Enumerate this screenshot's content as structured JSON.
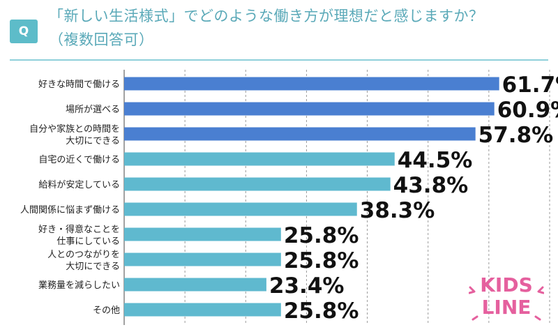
{
  "header": {
    "badge": "Q",
    "title_line1": "「新しい生活様式」でどのような働き方が理想だと感じますか？",
    "title_line2": "（複数回答可）"
  },
  "logo": {
    "line1": "KIDS",
    "line2": "LINE",
    "color": "#e5609e"
  },
  "chart_data": {
    "type": "bar",
    "orientation": "horizontal",
    "title": "「新しい生活様式」でどのような働き方が理想だと感じますか？（複数回答可）",
    "categories": [
      [
        "好きな時間で働ける"
      ],
      [
        "場所が選べる"
      ],
      [
        "自分や家族との時間を",
        "大切にできる"
      ],
      [
        "自宅の近くで働ける"
      ],
      [
        "給料が安定している"
      ],
      [
        "人間関係に悩まず働ける"
      ],
      [
        "好き・得意なことを",
        "仕事にしている"
      ],
      [
        "人とのつながりを",
        "大切にできる"
      ],
      [
        "業務量を減らしたい"
      ],
      [
        "その他"
      ]
    ],
    "values": [
      61.7,
      60.9,
      57.8,
      44.5,
      43.8,
      38.3,
      25.8,
      25.8,
      23.4,
      25.8
    ],
    "value_suffix": "%",
    "xlim": [
      0,
      70
    ],
    "grid": true,
    "colors": {
      "dark": "#4a7fd1",
      "light": "#5fb9cf"
    },
    "dark_count": 3
  }
}
